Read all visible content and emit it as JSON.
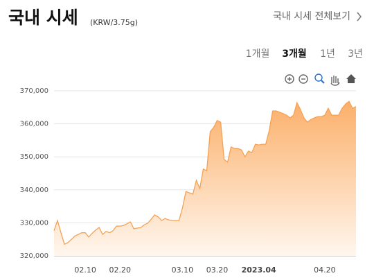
{
  "header": {
    "title": "국내 시세",
    "unit": "(KRW/3.75g)",
    "link": "국내 시세 전체보기"
  },
  "tabs": {
    "items": [
      "1개월",
      "3개월",
      "1년",
      "3년"
    ],
    "selected": "3개월"
  },
  "chart_data": {
    "type": "area",
    "color": "#f5a153",
    "grid": true,
    "categories": [
      null,
      null,
      null,
      null,
      null,
      null,
      null,
      null,
      null,
      "02.10",
      null,
      null,
      null,
      null,
      null,
      null,
      null,
      null,
      null,
      "02.20",
      null,
      null,
      null,
      null,
      null,
      null,
      null,
      null,
      null,
      null,
      null,
      null,
      null,
      null,
      null,
      null,
      null,
      "03.10",
      null,
      null,
      null,
      null,
      null,
      null,
      null,
      null,
      null,
      "03.20",
      null,
      null,
      null,
      null,
      null,
      null,
      null,
      null,
      null,
      null,
      null,
      "2023.04",
      null,
      null,
      null,
      null,
      null,
      null,
      null,
      null,
      null,
      null,
      null,
      null,
      null,
      null,
      null,
      null,
      null,
      null,
      "04.20",
      null,
      null,
      null,
      null,
      null,
      null,
      null,
      null,
      null
    ],
    "values": [
      327600,
      330700,
      327000,
      323500,
      324000,
      325000,
      326000,
      326500,
      327000,
      327000,
      325700,
      326800,
      327800,
      328600,
      326500,
      327400,
      327000,
      327600,
      329000,
      329000,
      329200,
      329700,
      330300,
      328200,
      328400,
      328600,
      329400,
      329900,
      331100,
      332400,
      331800,
      330700,
      331300,
      330900,
      330700,
      330700,
      330700,
      334500,
      339500,
      339100,
      338700,
      342900,
      340400,
      346300,
      345800,
      357600,
      358900,
      361000,
      360500,
      349200,
      348400,
      353000,
      352500,
      352500,
      352100,
      350000,
      351700,
      351300,
      353800,
      353600,
      353800,
      353800,
      358000,
      363900,
      363900,
      363500,
      363100,
      362600,
      361800,
      362600,
      366400,
      364300,
      361800,
      360500,
      361300,
      361800,
      362200,
      362200,
      362600,
      364700,
      362600,
      362600,
      362600,
      364700,
      366000,
      366800,
      364700,
      365200
    ],
    "ylim": [
      320000,
      370000
    ],
    "yticks": [
      {
        "value": 320000,
        "label": "320,000"
      },
      {
        "value": 330000,
        "label": "330,000"
      },
      {
        "value": 340000,
        "label": "340,000"
      },
      {
        "value": 350000,
        "label": "350,000"
      },
      {
        "value": 360000,
        "label": "360,000"
      },
      {
        "value": 370000,
        "label": "370,000"
      }
    ]
  }
}
